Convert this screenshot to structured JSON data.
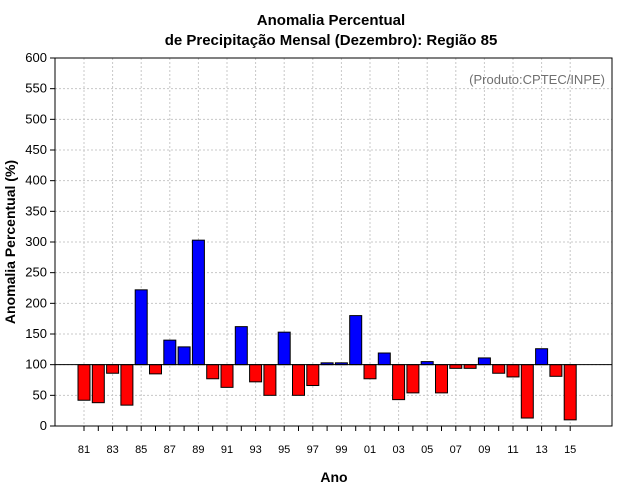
{
  "chart_data": {
    "type": "bar",
    "title_line1": "Anomalia Percentual",
    "title_line2": "de Precipitação Mensal (Dezembro): Região 85",
    "xlabel": "Ano",
    "ylabel": "Anomalia Percentual (%)",
    "annotation": "(Produto:CPTEC/INPE)",
    "baseline": 100,
    "ylim": [
      0,
      600
    ],
    "yticks": [
      "0",
      "50",
      "100",
      "150",
      "200",
      "250",
      "300",
      "350",
      "400",
      "450",
      "500",
      "550",
      "600"
    ],
    "categories": [
      "81",
      "82",
      "83",
      "84",
      "85",
      "86",
      "87",
      "88",
      "89",
      "90",
      "91",
      "92",
      "93",
      "94",
      "95",
      "96",
      "97",
      "98",
      "99",
      "00",
      "01",
      "02",
      "03",
      "04",
      "05",
      "06",
      "07",
      "08",
      "09",
      "10",
      "11",
      "12",
      "13",
      "14",
      "15"
    ],
    "xtick_labels": [
      "81",
      "83",
      "85",
      "87",
      "89",
      "91",
      "93",
      "95",
      "97",
      "99",
      "01",
      "03",
      "05",
      "07",
      "09",
      "11",
      "13",
      "15"
    ],
    "values": [
      42,
      38,
      86,
      34,
      222,
      85,
      140,
      129,
      303,
      77,
      63,
      162,
      72,
      50,
      153,
      50,
      66,
      103,
      103,
      180,
      77,
      119,
      43,
      54,
      105,
      54,
      94,
      94,
      111,
      86,
      80,
      13,
      126,
      81,
      10
    ],
    "colors": {
      "above": "#0000ff",
      "below": "#ff0000",
      "grid": "#c8c8c8",
      "axis": "#000000"
    }
  }
}
